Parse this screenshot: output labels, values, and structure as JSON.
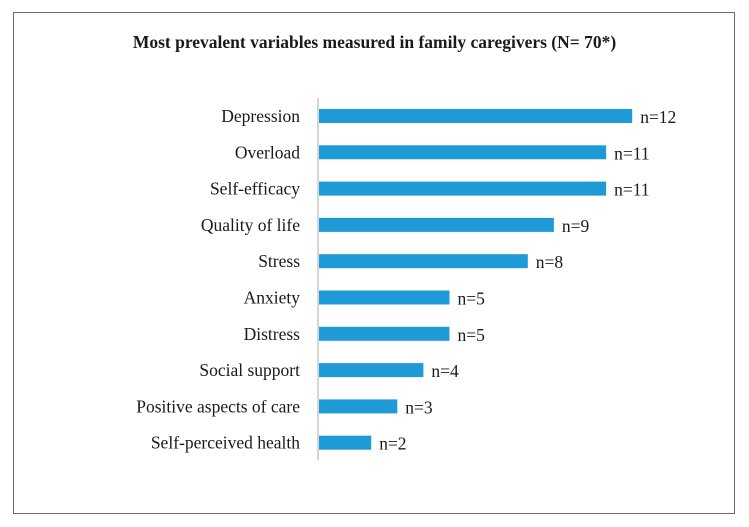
{
  "chart_data": {
    "type": "bar",
    "orientation": "horizontal",
    "title": "Most prevalent variables measured in family caregivers (N= 70*)",
    "categories": [
      "Depression",
      "Overload",
      "Self-efficacy",
      "Quality of life",
      "Stress",
      "Anxiety",
      "Distress",
      "Social support",
      "Positive aspects of care",
      "Self-perceived health"
    ],
    "values": [
      12,
      11,
      11,
      9,
      8,
      5,
      5,
      4,
      3,
      2
    ],
    "data_labels": [
      "n=12",
      "n=11",
      "n=11",
      "n=9",
      "n=8",
      "n=5",
      "n=5",
      "n=4",
      "n=3",
      "n=2"
    ],
    "xlabel": "",
    "ylabel": "",
    "xlim": [
      0,
      12
    ],
    "grid": false,
    "legend": "none",
    "bar_color": "#1e9ad6",
    "axis_color": "#c8c8c8"
  }
}
